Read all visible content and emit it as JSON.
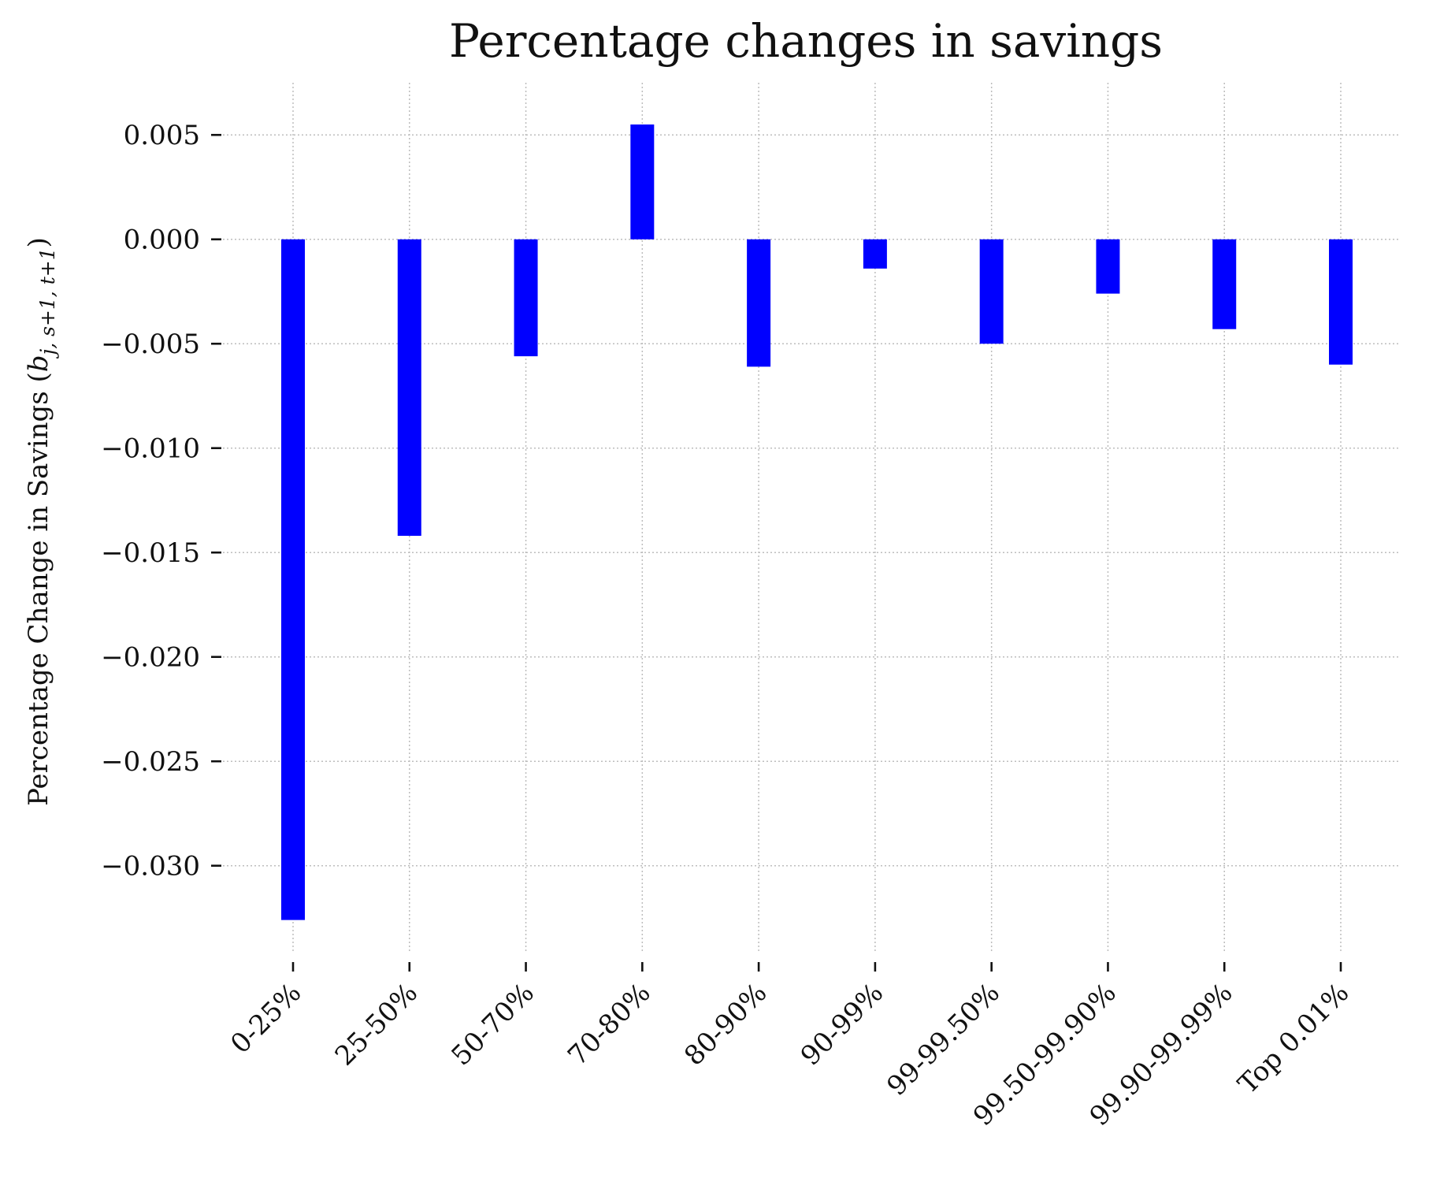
{
  "chart_data": {
    "type": "bar",
    "title": "Percentage changes in savings",
    "xlabel": "",
    "ylabel": "Percentage Change in Savings",
    "ylabel_math": {
      "base": "b",
      "subscript": "j, s+1, t+1"
    },
    "categories": [
      "0-25%",
      "25-50%",
      "50-70%",
      "70-80%",
      "80-90%",
      "90-99%",
      "99-99.50%",
      "99.50-99.90%",
      "99.90-99.99%",
      "Top 0.01%"
    ],
    "values": [
      -0.0326,
      -0.0142,
      -0.0056,
      0.0055,
      -0.0061,
      -0.0014,
      -0.005,
      -0.0026,
      -0.0043,
      -0.006
    ],
    "yticks": [
      0.005,
      0.0,
      -0.005,
      -0.01,
      -0.015,
      -0.02,
      -0.025,
      -0.03
    ],
    "ytick_labels": [
      "0.005",
      "0.000",
      "−0.005",
      "−0.010",
      "−0.015",
      "−0.020",
      "−0.025",
      "−0.030"
    ],
    "ylim": [
      -0.0342,
      0.0075
    ],
    "grid": true,
    "legend": "none",
    "bar_color": "#0000ff"
  }
}
